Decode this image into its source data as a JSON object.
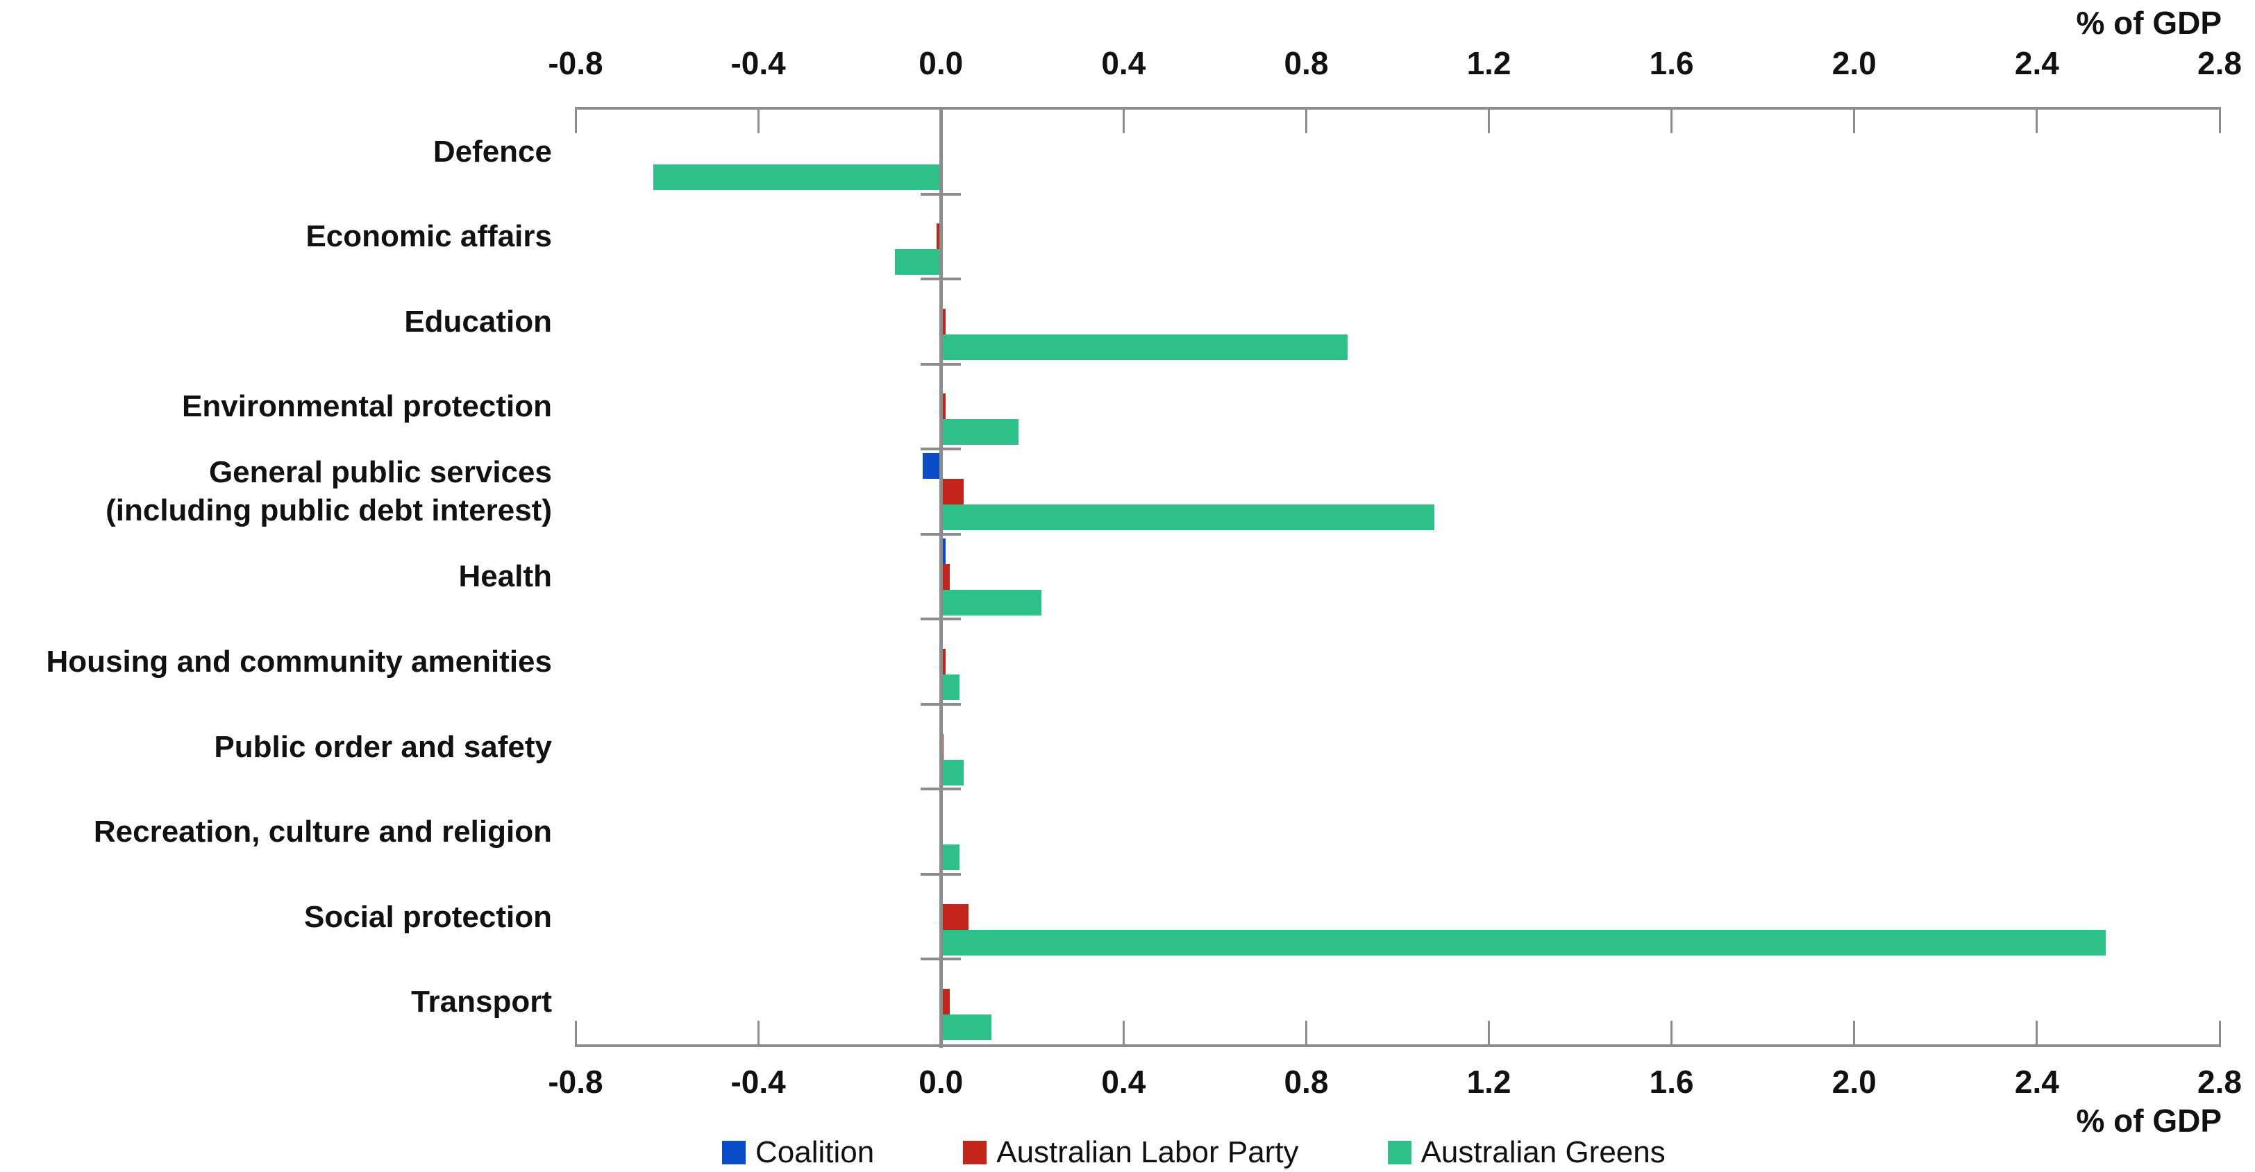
{
  "axis": {
    "unit_label": "% of GDP",
    "tick_labels": [
      "-0.8",
      "-0.4",
      "0.0",
      "0.4",
      "0.8",
      "1.2",
      "1.6",
      "2.0",
      "2.4",
      "2.8"
    ]
  },
  "colors": {
    "background": "#FFFFFF",
    "axis": "#8C8C8C",
    "text": "#111111",
    "coalition_blue": "#0A4CC8",
    "labor_red": "#C4251A",
    "greens_green": "#2DC189"
  },
  "legend": {
    "position": "bottom",
    "items": [
      {
        "label": "Coalition",
        "color": "#0A4CC8"
      },
      {
        "label": "Australian Labor Party",
        "color": "#C4251A"
      },
      {
        "label": "Australian Greens",
        "color": "#2DC189"
      }
    ]
  },
  "chart_data": {
    "type": "bar",
    "orientation": "horizontal",
    "title": "",
    "xlabel": "% of GDP",
    "ylabel": "",
    "xlim": [
      -0.8,
      2.8
    ],
    "xticks": [
      -0.8,
      -0.4,
      0.0,
      0.4,
      0.8,
      1.2,
      1.6,
      2.0,
      2.4,
      2.8
    ],
    "grid": false,
    "legend_position": "bottom",
    "categories": [
      "Defence",
      "Economic affairs",
      "Education",
      "Environmental protection",
      "General public services\n(including public debt interest)",
      "Health",
      "Housing and community amenities",
      "Public order and safety",
      "Recreation, culture and religion",
      "Social protection",
      "Transport"
    ],
    "series": [
      {
        "name": "Coalition",
        "color": "#0A4CC8",
        "values": [
          0,
          0,
          0,
          0,
          -0.04,
          0.01,
          0,
          0,
          0,
          0,
          0
        ]
      },
      {
        "name": "Australian Labor Party",
        "color": "#C4251A",
        "values": [
          0,
          -0.01,
          0.01,
          0.01,
          0.05,
          0.02,
          0.01,
          0.005,
          0,
          0.06,
          0.02
        ]
      },
      {
        "name": "Australian Greens",
        "color": "#2DC189",
        "values": [
          -0.63,
          -0.1,
          0.89,
          0.17,
          1.08,
          0.22,
          0.04,
          0.05,
          0.04,
          2.55,
          0.11
        ]
      }
    ]
  }
}
